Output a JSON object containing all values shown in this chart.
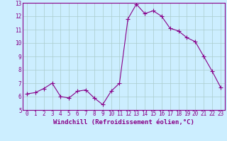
{
  "xlabel": "Windchill (Refroidissement éolien,°C)",
  "x": [
    0,
    1,
    2,
    3,
    4,
    5,
    6,
    7,
    8,
    9,
    10,
    11,
    12,
    13,
    14,
    15,
    16,
    17,
    18,
    19,
    20,
    21,
    22,
    23
  ],
  "y": [
    6.2,
    6.3,
    6.6,
    7.0,
    6.0,
    5.9,
    6.4,
    6.5,
    5.9,
    5.4,
    6.4,
    7.0,
    11.8,
    12.9,
    12.2,
    12.4,
    12.0,
    11.1,
    10.9,
    10.4,
    10.1,
    9.0,
    7.9,
    6.7
  ],
  "line_color": "#880088",
  "marker": "+",
  "marker_size": 4,
  "bg_color": "#cceeff",
  "grid_color": "#aacccc",
  "ylim": [
    5,
    13
  ],
  "yticks": [
    5,
    6,
    7,
    8,
    9,
    10,
    11,
    12,
    13
  ],
  "xticks": [
    0,
    1,
    2,
    3,
    4,
    5,
    6,
    7,
    8,
    9,
    10,
    11,
    12,
    13,
    14,
    15,
    16,
    17,
    18,
    19,
    20,
    21,
    22,
    23
  ],
  "tick_label_color": "#880088",
  "tick_label_size": 5.5,
  "xlabel_size": 6.5,
  "border_color": "#880088"
}
